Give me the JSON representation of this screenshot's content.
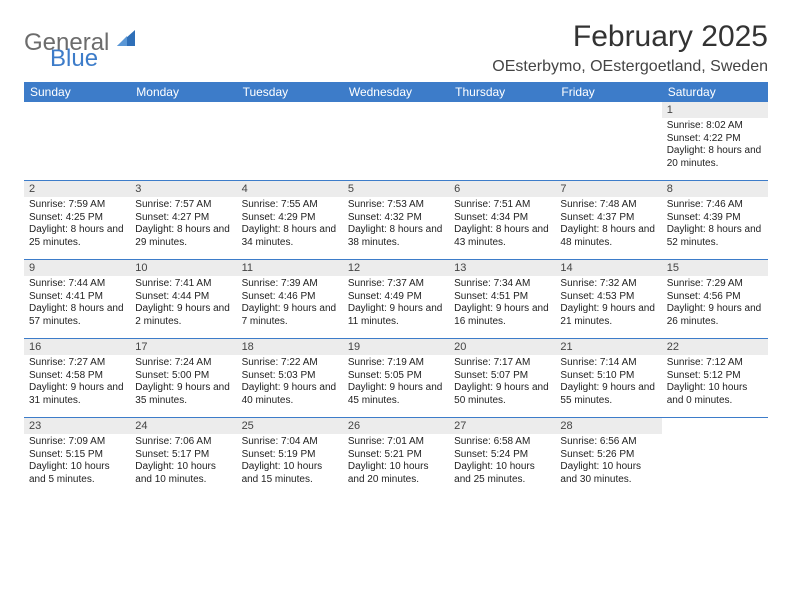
{
  "brand": {
    "line1": "General",
    "line2": "Blue"
  },
  "title": "February 2025",
  "location": "OEsterbymo, OEstergoetland, Sweden",
  "colors": {
    "header_bg": "#3d7cc9",
    "header_text": "#ffffff",
    "daynum_bg": "#ececec",
    "rule": "#3d7cc9",
    "brand_gray": "#6c6c6c",
    "brand_blue": "#3d7cc9"
  },
  "day_names": [
    "Sunday",
    "Monday",
    "Tuesday",
    "Wednesday",
    "Thursday",
    "Friday",
    "Saturday"
  ],
  "weeks": [
    [
      null,
      null,
      null,
      null,
      null,
      null,
      {
        "n": "1",
        "sunrise": "Sunrise: 8:02 AM",
        "sunset": "Sunset: 4:22 PM",
        "daylight": "Daylight: 8 hours and 20 minutes."
      }
    ],
    [
      {
        "n": "2",
        "sunrise": "Sunrise: 7:59 AM",
        "sunset": "Sunset: 4:25 PM",
        "daylight": "Daylight: 8 hours and 25 minutes."
      },
      {
        "n": "3",
        "sunrise": "Sunrise: 7:57 AM",
        "sunset": "Sunset: 4:27 PM",
        "daylight": "Daylight: 8 hours and 29 minutes."
      },
      {
        "n": "4",
        "sunrise": "Sunrise: 7:55 AM",
        "sunset": "Sunset: 4:29 PM",
        "daylight": "Daylight: 8 hours and 34 minutes."
      },
      {
        "n": "5",
        "sunrise": "Sunrise: 7:53 AM",
        "sunset": "Sunset: 4:32 PM",
        "daylight": "Daylight: 8 hours and 38 minutes."
      },
      {
        "n": "6",
        "sunrise": "Sunrise: 7:51 AM",
        "sunset": "Sunset: 4:34 PM",
        "daylight": "Daylight: 8 hours and 43 minutes."
      },
      {
        "n": "7",
        "sunrise": "Sunrise: 7:48 AM",
        "sunset": "Sunset: 4:37 PM",
        "daylight": "Daylight: 8 hours and 48 minutes."
      },
      {
        "n": "8",
        "sunrise": "Sunrise: 7:46 AM",
        "sunset": "Sunset: 4:39 PM",
        "daylight": "Daylight: 8 hours and 52 minutes."
      }
    ],
    [
      {
        "n": "9",
        "sunrise": "Sunrise: 7:44 AM",
        "sunset": "Sunset: 4:41 PM",
        "daylight": "Daylight: 8 hours and 57 minutes."
      },
      {
        "n": "10",
        "sunrise": "Sunrise: 7:41 AM",
        "sunset": "Sunset: 4:44 PM",
        "daylight": "Daylight: 9 hours and 2 minutes."
      },
      {
        "n": "11",
        "sunrise": "Sunrise: 7:39 AM",
        "sunset": "Sunset: 4:46 PM",
        "daylight": "Daylight: 9 hours and 7 minutes."
      },
      {
        "n": "12",
        "sunrise": "Sunrise: 7:37 AM",
        "sunset": "Sunset: 4:49 PM",
        "daylight": "Daylight: 9 hours and 11 minutes."
      },
      {
        "n": "13",
        "sunrise": "Sunrise: 7:34 AM",
        "sunset": "Sunset: 4:51 PM",
        "daylight": "Daylight: 9 hours and 16 minutes."
      },
      {
        "n": "14",
        "sunrise": "Sunrise: 7:32 AM",
        "sunset": "Sunset: 4:53 PM",
        "daylight": "Daylight: 9 hours and 21 minutes."
      },
      {
        "n": "15",
        "sunrise": "Sunrise: 7:29 AM",
        "sunset": "Sunset: 4:56 PM",
        "daylight": "Daylight: 9 hours and 26 minutes."
      }
    ],
    [
      {
        "n": "16",
        "sunrise": "Sunrise: 7:27 AM",
        "sunset": "Sunset: 4:58 PM",
        "daylight": "Daylight: 9 hours and 31 minutes."
      },
      {
        "n": "17",
        "sunrise": "Sunrise: 7:24 AM",
        "sunset": "Sunset: 5:00 PM",
        "daylight": "Daylight: 9 hours and 35 minutes."
      },
      {
        "n": "18",
        "sunrise": "Sunrise: 7:22 AM",
        "sunset": "Sunset: 5:03 PM",
        "daylight": "Daylight: 9 hours and 40 minutes."
      },
      {
        "n": "19",
        "sunrise": "Sunrise: 7:19 AM",
        "sunset": "Sunset: 5:05 PM",
        "daylight": "Daylight: 9 hours and 45 minutes."
      },
      {
        "n": "20",
        "sunrise": "Sunrise: 7:17 AM",
        "sunset": "Sunset: 5:07 PM",
        "daylight": "Daylight: 9 hours and 50 minutes."
      },
      {
        "n": "21",
        "sunrise": "Sunrise: 7:14 AM",
        "sunset": "Sunset: 5:10 PM",
        "daylight": "Daylight: 9 hours and 55 minutes."
      },
      {
        "n": "22",
        "sunrise": "Sunrise: 7:12 AM",
        "sunset": "Sunset: 5:12 PM",
        "daylight": "Daylight: 10 hours and 0 minutes."
      }
    ],
    [
      {
        "n": "23",
        "sunrise": "Sunrise: 7:09 AM",
        "sunset": "Sunset: 5:15 PM",
        "daylight": "Daylight: 10 hours and 5 minutes."
      },
      {
        "n": "24",
        "sunrise": "Sunrise: 7:06 AM",
        "sunset": "Sunset: 5:17 PM",
        "daylight": "Daylight: 10 hours and 10 minutes."
      },
      {
        "n": "25",
        "sunrise": "Sunrise: 7:04 AM",
        "sunset": "Sunset: 5:19 PM",
        "daylight": "Daylight: 10 hours and 15 minutes."
      },
      {
        "n": "26",
        "sunrise": "Sunrise: 7:01 AM",
        "sunset": "Sunset: 5:21 PM",
        "daylight": "Daylight: 10 hours and 20 minutes."
      },
      {
        "n": "27",
        "sunrise": "Sunrise: 6:58 AM",
        "sunset": "Sunset: 5:24 PM",
        "daylight": "Daylight: 10 hours and 25 minutes."
      },
      {
        "n": "28",
        "sunrise": "Sunrise: 6:56 AM",
        "sunset": "Sunset: 5:26 PM",
        "daylight": "Daylight: 10 hours and 30 minutes."
      },
      null
    ]
  ]
}
